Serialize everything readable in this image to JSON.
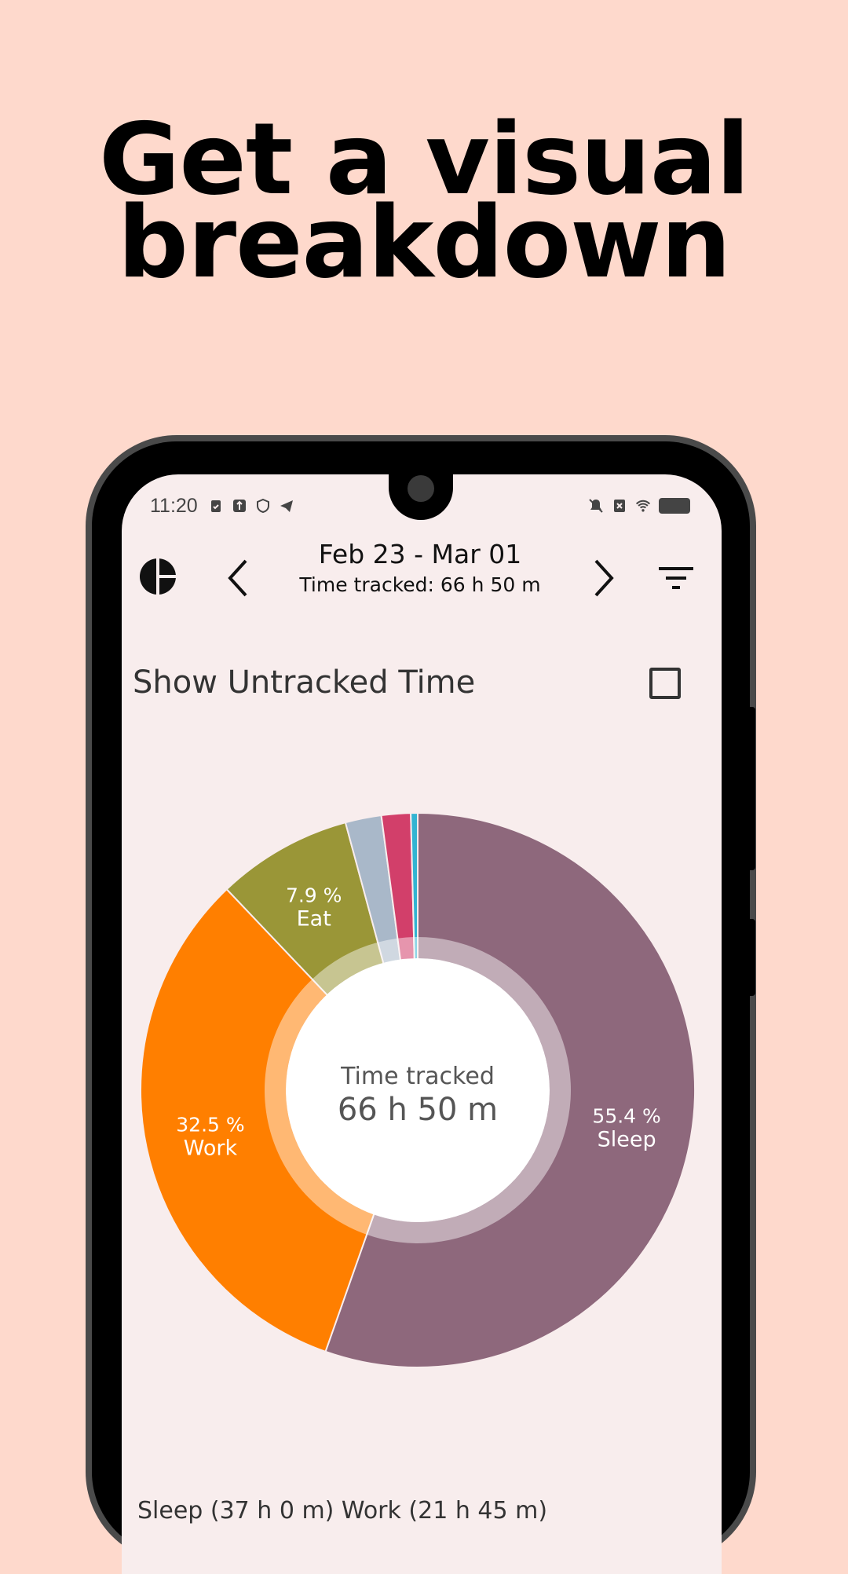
{
  "headline": {
    "line1": "Get a visual",
    "line2": "breakdown"
  },
  "status_bar": {
    "time": "11:20"
  },
  "header": {
    "date_range": "Feb 23 - Mar 01",
    "time_tracked": "Time tracked: 66 h 50 m"
  },
  "untracked": {
    "label": "Show Untracked Time",
    "checked": false
  },
  "chart_data": {
    "type": "pie",
    "center_label": "Time tracked",
    "center_value": "66 h 50 m",
    "slices": [
      {
        "name": "Sleep",
        "percent": 55.4,
        "percent_label": "55.4 %",
        "color": "#8E687C"
      },
      {
        "name": "Work",
        "percent": 32.5,
        "percent_label": "32.5 %",
        "color": "#FF7F00"
      },
      {
        "name": "Eat",
        "percent": 7.9,
        "percent_label": "7.9 %",
        "color": "#9A9637"
      },
      {
        "name": "",
        "percent": 2.1,
        "percent_label": "",
        "color": "#A9B8C9"
      },
      {
        "name": "",
        "percent": 1.7,
        "percent_label": "",
        "color": "#D23F6A"
      },
      {
        "name": "",
        "percent": 0.4,
        "percent_label": "",
        "color": "#32B4D2"
      }
    ]
  },
  "legend": {
    "text": "Sleep (37 h 0 m)  Work (21 h 45 m)"
  },
  "colors": {
    "background": "#FED9CC",
    "screen": "#F8EDED"
  },
  "icons": {
    "logo": "pie-logo-icon",
    "prev": "chevron-left-icon",
    "next": "chevron-right-icon",
    "filter": "filter-icon"
  }
}
